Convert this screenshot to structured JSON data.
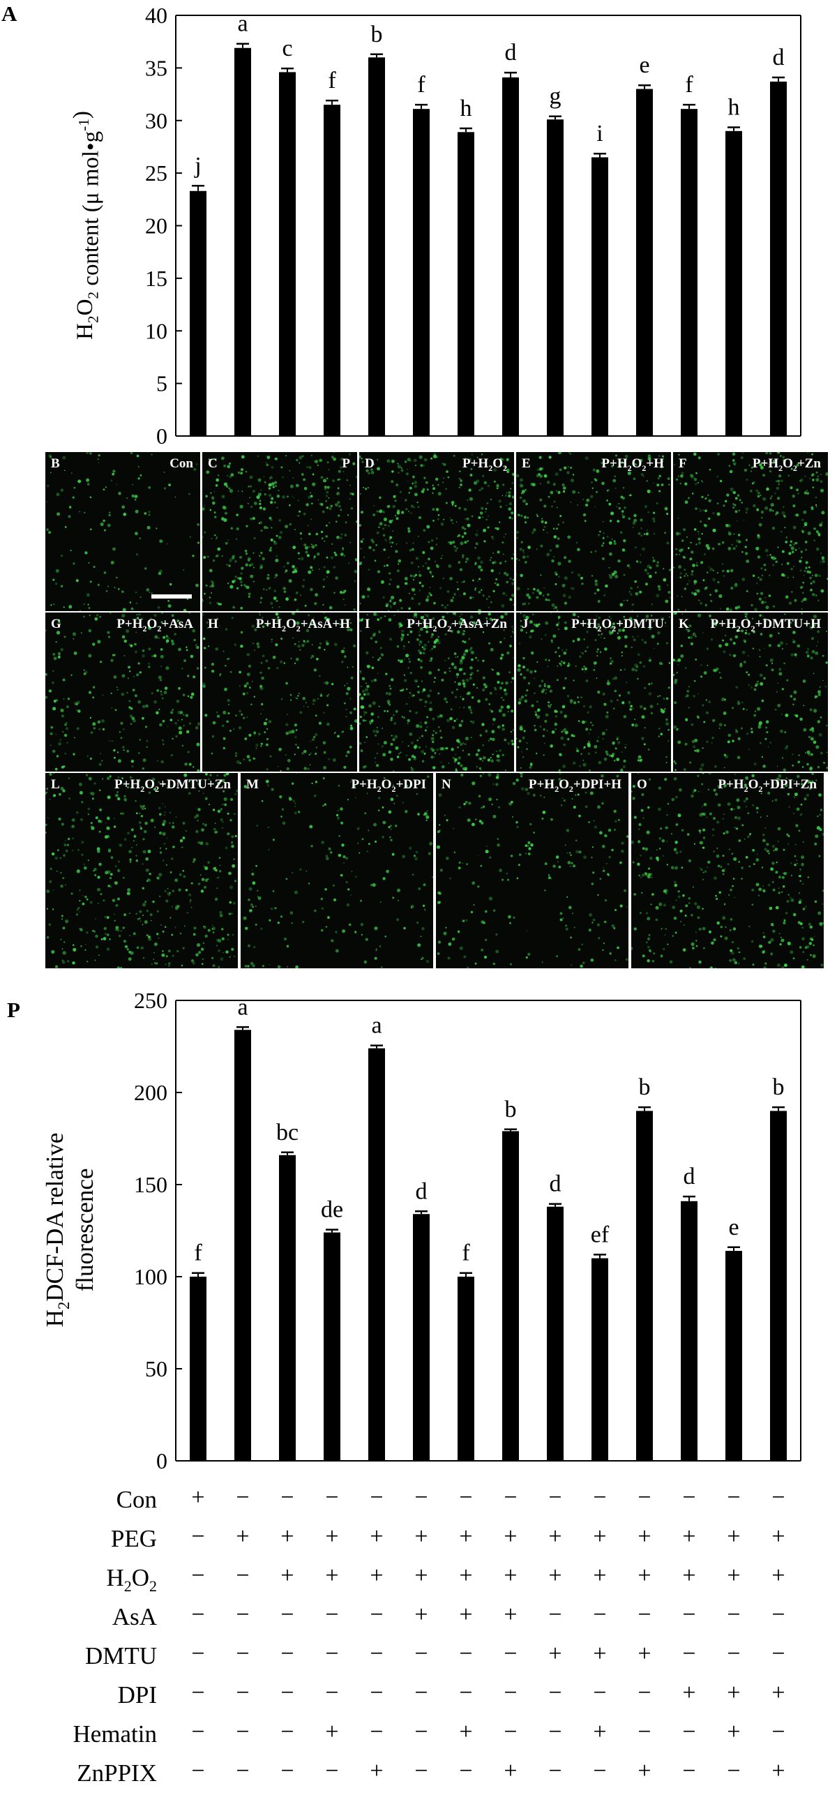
{
  "panel_tags": {
    "a": "A",
    "p": "P"
  },
  "chart_data": [
    {
      "type": "bar",
      "panel": "A",
      "ylabel": "H2O2 content (μ mol•g-1)",
      "ylim": [
        0,
        40
      ],
      "yticks": [
        0,
        5,
        10,
        15,
        20,
        25,
        30,
        35,
        40
      ],
      "categories": [
        "Con",
        "P",
        "P+H2O2",
        "P+H2O2+H",
        "P+H2O2+Zn",
        "P+H2O2+AsA",
        "P+H2O2+AsA+H",
        "P+H2O2+AsA+Zn",
        "P+H2O2+DMTU",
        "P+H2O2+DMTU+H",
        "P+H2O2+DMTU+Zn",
        "P+H2O2+DPI",
        "P+H2O2+DPI+H",
        "P+H2O2+DPI+Zn"
      ],
      "values": [
        23.3,
        36.9,
        34.6,
        31.5,
        36.0,
        31.1,
        28.9,
        34.1,
        30.1,
        26.5,
        33.0,
        31.1,
        29.0,
        33.7
      ],
      "errors": [
        0.5,
        0.4,
        0.35,
        0.4,
        0.3,
        0.4,
        0.35,
        0.45,
        0.3,
        0.35,
        0.35,
        0.4,
        0.35,
        0.4
      ],
      "letters": [
        "j",
        "a",
        "c",
        "f",
        "b",
        "f",
        "h",
        "d",
        "g",
        "i",
        "e",
        "f",
        "h",
        "d"
      ]
    },
    {
      "type": "bar",
      "panel": "P",
      "ylabel": "H2DCF-DA relative fluorescence",
      "ylim": [
        0,
        250
      ],
      "yticks": [
        0,
        50,
        100,
        150,
        200,
        250
      ],
      "categories": [
        "Con",
        "P",
        "P+H2O2",
        "P+H2O2+H",
        "P+H2O2+Zn",
        "P+H2O2+AsA",
        "P+H2O2+AsA+H",
        "P+H2O2+AsA+Zn",
        "P+H2O2+DMTU",
        "P+H2O2+DMTU+H",
        "P+H2O2+DMTU+Zn",
        "P+H2O2+DPI",
        "P+H2O2+DPI+H",
        "P+H2O2+DPI+Zn"
      ],
      "values": [
        100,
        234,
        166,
        124,
        224,
        134,
        100,
        179,
        138,
        110,
        190,
        141,
        114,
        190
      ],
      "errors": [
        2,
        1.5,
        1.5,
        1.5,
        1.5,
        1.5,
        2,
        1,
        1.5,
        2,
        2,
        2.5,
        2,
        2
      ],
      "letters": [
        "f",
        "a",
        "bc",
        "de",
        "a",
        "d",
        "f",
        "b",
        "d",
        "ef",
        "b",
        "d",
        "e",
        "b"
      ]
    }
  ],
  "micrographs": [
    {
      "letter": "B",
      "label": "Con",
      "density": 0.25,
      "scale_bar": true
    },
    {
      "letter": "C",
      "label": "P",
      "density": 0.75
    },
    {
      "letter": "D",
      "label": "P+H2O2",
      "density": 0.8
    },
    {
      "letter": "E",
      "label": "P+H2O2+H",
      "density": 0.6
    },
    {
      "letter": "F",
      "label": "P+H2O2+Zn",
      "density": 0.75
    },
    {
      "letter": "G",
      "label": "P+H2O2+AsA",
      "density": 0.5
    },
    {
      "letter": "H",
      "label": "P+H2O2+AsA+H",
      "density": 0.5
    },
    {
      "letter": "I",
      "label": "P+H2O2+AsA+Zn",
      "density": 0.95
    },
    {
      "letter": "J",
      "label": "P+H2O2+DMTU",
      "density": 0.7
    },
    {
      "letter": "K",
      "label": "P+H2O2+DMTU+H",
      "density": 0.55
    },
    {
      "letter": "L",
      "label": "P+H2O2+DMTU+Zn",
      "density": 0.95
    },
    {
      "letter": "M",
      "label": "P+H2O2+DPI",
      "density": 0.4
    },
    {
      "letter": "N",
      "label": "P+H2O2+DPI+H",
      "density": 0.45
    },
    {
      "letter": "O",
      "label": "P+H2O2+DPI+Zn",
      "density": 0.85
    }
  ],
  "treatments": {
    "rows": [
      {
        "name": "Con",
        "signs": [
          "+",
          "−",
          "−",
          "−",
          "−",
          "−",
          "−",
          "−",
          "−",
          "−",
          "−",
          "−",
          "−",
          "−"
        ]
      },
      {
        "name": "PEG",
        "signs": [
          "−",
          "+",
          "+",
          "+",
          "+",
          "+",
          "+",
          "+",
          "+",
          "+",
          "+",
          "+",
          "+",
          "+"
        ]
      },
      {
        "name": "H2O2",
        "signs": [
          "−",
          "−",
          "+",
          "+",
          "+",
          "+",
          "+",
          "+",
          "+",
          "+",
          "+",
          "+",
          "+",
          "+"
        ]
      },
      {
        "name": "AsA",
        "signs": [
          "−",
          "−",
          "−",
          "−",
          "−",
          "+",
          "+",
          "+",
          "−",
          "−",
          "−",
          "−",
          "−",
          "−"
        ]
      },
      {
        "name": "DMTU",
        "signs": [
          "−",
          "−",
          "−",
          "−",
          "−",
          "−",
          "−",
          "−",
          "+",
          "+",
          "+",
          "−",
          "−",
          "−"
        ]
      },
      {
        "name": "DPI",
        "signs": [
          "−",
          "−",
          "−",
          "−",
          "−",
          "−",
          "−",
          "−",
          "−",
          "−",
          "−",
          "+",
          "+",
          "+"
        ]
      },
      {
        "name": "Hematin",
        "signs": [
          "−",
          "−",
          "−",
          "+",
          "−",
          "−",
          "+",
          "−",
          "−",
          "+",
          "−",
          "−",
          "+",
          "−"
        ]
      },
      {
        "name": "ZnPPIX",
        "signs": [
          "−",
          "−",
          "−",
          "−",
          "+",
          "−",
          "−",
          "+",
          "−",
          "−",
          "+",
          "−",
          "−",
          "+"
        ]
      }
    ]
  },
  "colors": {
    "bar": "#000000",
    "fluorescence": "#3fd24a",
    "background_micro": "#050805"
  }
}
